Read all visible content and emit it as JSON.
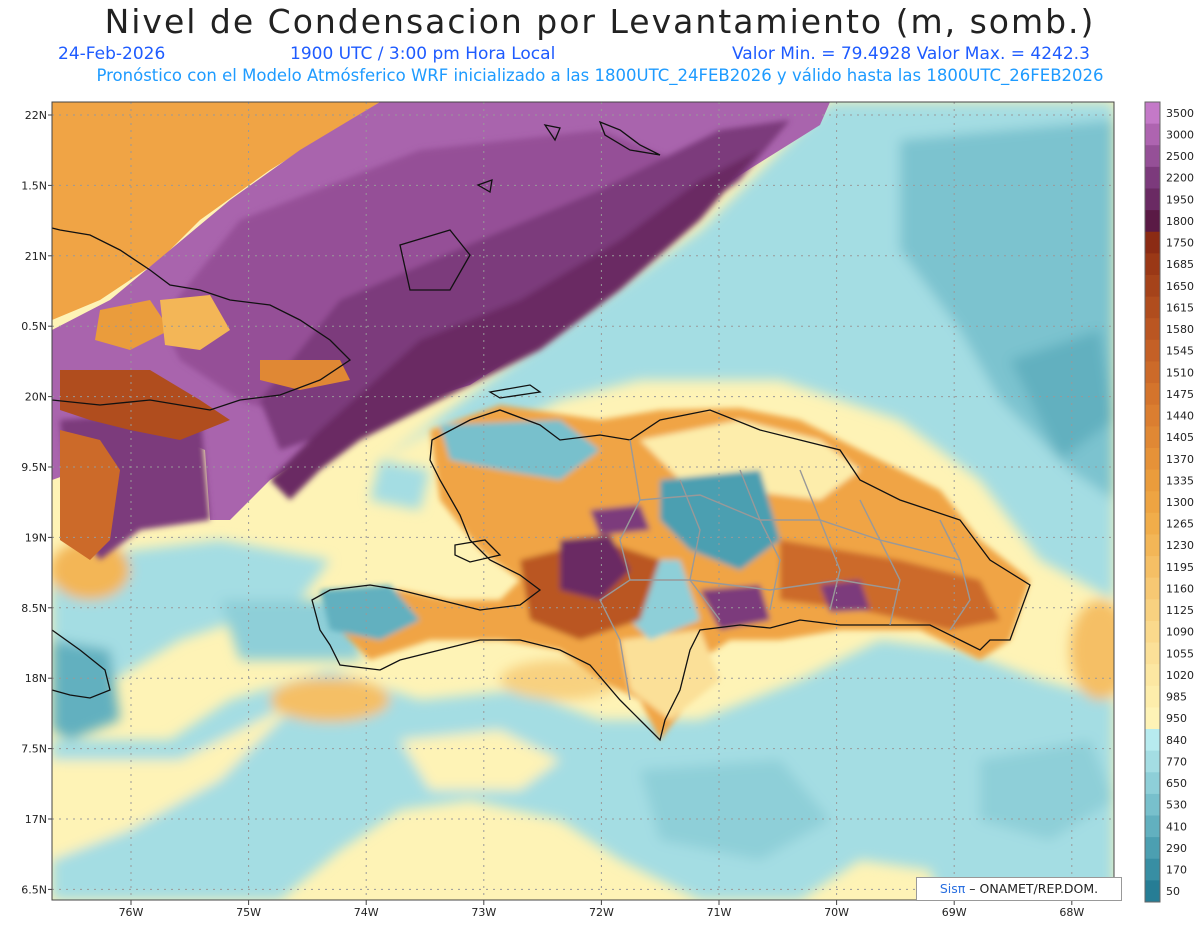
{
  "title": "Nivel de Condensacion por Levantamiento (m, somb.)",
  "date": "24-Feb-2026",
  "time": "1900 UTC / 3:00 pm Hora Local",
  "min_max": "Valor Min. = 79.4928  Valor Max. = 4242.3",
  "subtitle": "Pronóstico con el Modelo Atmósferico WRF inicializado a las 1800UTC_24FEB2026 y válido hasta las  1800UTC_26FEB2026",
  "credit_sis": "Sisπ",
  "credit_rest": " – ONAMET/REP.DOM.",
  "lat_labels": [
    "22N",
    "1.5N",
    "21N",
    "0.5N",
    "20N",
    "9.5N",
    "19N",
    "8.5N",
    "18N",
    "7.5N",
    "17N",
    "6.5N"
  ],
  "lon_labels": [
    "76W",
    "75W",
    "74W",
    "73W",
    "72W",
    "71W",
    "70W",
    "69W",
    "68W"
  ],
  "legend": [
    {
      "label": "3500",
      "color": "#c479c8"
    },
    {
      "label": "3000",
      "color": "#ae64b0"
    },
    {
      "label": "2500",
      "color": "#955097"
    },
    {
      "label": "2200",
      "color": "#7c3a7c"
    },
    {
      "label": "1950",
      "color": "#6a2a63"
    },
    {
      "label": "1800",
      "color": "#5a1a45"
    },
    {
      "label": "1750",
      "color": "#8b2b14"
    },
    {
      "label": "1685",
      "color": "#9a3816"
    },
    {
      "label": "1650",
      "color": "#a5431a"
    },
    {
      "label": "1615",
      "color": "#b04d1e"
    },
    {
      "label": "1580",
      "color": "#ba5622"
    },
    {
      "label": "1545",
      "color": "#c46026"
    },
    {
      "label": "1510",
      "color": "#cc6a29"
    },
    {
      "label": "1475",
      "color": "#d4742c"
    },
    {
      "label": "1440",
      "color": "#db7e30"
    },
    {
      "label": "1405",
      "color": "#e08834"
    },
    {
      "label": "1370",
      "color": "#e69238"
    },
    {
      "label": "1335",
      "color": "#ea9c3c"
    },
    {
      "label": "1300",
      "color": "#eea442"
    },
    {
      "label": "1265",
      "color": "#f1ad4a"
    },
    {
      "label": "1230",
      "color": "#f3b657"
    },
    {
      "label": "1195",
      "color": "#f5bf65"
    },
    {
      "label": "1160",
      "color": "#f7c873"
    },
    {
      "label": "1125",
      "color": "#f8d180"
    },
    {
      "label": "1090",
      "color": "#fad98c"
    },
    {
      "label": "1055",
      "color": "#fbe098"
    },
    {
      "label": "1020",
      "color": "#fce7a2"
    },
    {
      "label": "985",
      "color": "#fdedab"
    },
    {
      "label": "950",
      "color": "#fef3b6"
    },
    {
      "label": "840",
      "color": "#b7ebef"
    },
    {
      "label": "770",
      "color": "#a4dde3"
    },
    {
      "label": "650",
      "color": "#8ecfd8"
    },
    {
      "label": "530",
      "color": "#78c0cc"
    },
    {
      "label": "410",
      "color": "#62b0bf"
    },
    {
      "label": "290",
      "color": "#4c9fb1"
    },
    {
      "label": "170",
      "color": "#388ea3"
    },
    {
      "label": "50",
      "color": "#267d95"
    }
  ],
  "colors": {
    "sea_yellow": "#fef3b6",
    "sea_cyan": "#a4dde3",
    "sea_blue": "#7cc3cf",
    "orange": "#f0a445",
    "violet": "#a964ad",
    "violet_dark": "#7c3a7c",
    "violet_deeper": "#5f1f52",
    "brown": "#b04d1e",
    "land_teal": "#4c9fb1"
  }
}
